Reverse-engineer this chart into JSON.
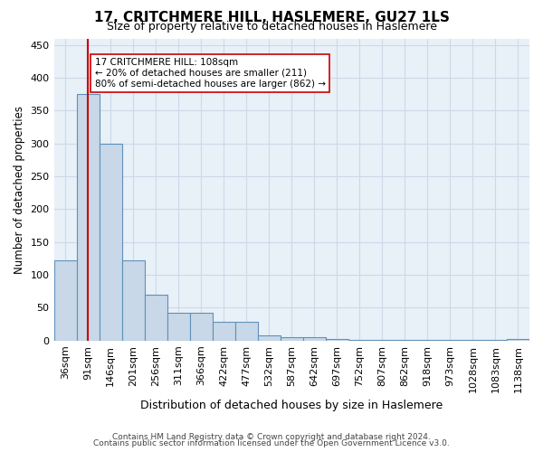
{
  "title": "17, CRITCHMERE HILL, HASLEMERE, GU27 1LS",
  "subtitle": "Size of property relative to detached houses in Haslemere",
  "xlabel": "Distribution of detached houses by size in Haslemere",
  "ylabel": "Number of detached properties",
  "footer_line1": "Contains HM Land Registry data © Crown copyright and database right 2024.",
  "footer_line2": "Contains public sector information licensed under the Open Government Licence v3.0.",
  "bin_labels": [
    "36sqm",
    "91sqm",
    "146sqm",
    "201sqm",
    "256sqm",
    "311sqm",
    "366sqm",
    "422sqm",
    "477sqm",
    "532sqm",
    "587sqm",
    "642sqm",
    "697sqm",
    "752sqm",
    "807sqm",
    "862sqm",
    "918sqm",
    "973sqm",
    "1028sqm",
    "1083sqm",
    "1138sqm"
  ],
  "bar_heights": [
    122,
    375,
    300,
    122,
    70,
    43,
    43,
    29,
    29,
    8,
    5,
    5,
    3,
    1,
    1,
    1,
    1,
    1,
    1,
    1,
    3
  ],
  "bar_color": "#c8d8e8",
  "bar_edge_color": "#6090b8",
  "ylim": [
    0,
    460
  ],
  "yticks": [
    0,
    50,
    100,
    150,
    200,
    250,
    300,
    350,
    400,
    450
  ],
  "grid_color": "#d0d8e8",
  "background_color": "#e8f0f8",
  "property_size": 108,
  "property_bin_index": 1,
  "vline_color": "#cc0000",
  "annotation_text": "17 CRITCHMERE HILL: 108sqm\n← 20% of detached houses are smaller (211)\n80% of semi-detached houses are larger (862) →",
  "annotation_box_color": "#ffffff",
  "annotation_box_edge": "#cc0000"
}
